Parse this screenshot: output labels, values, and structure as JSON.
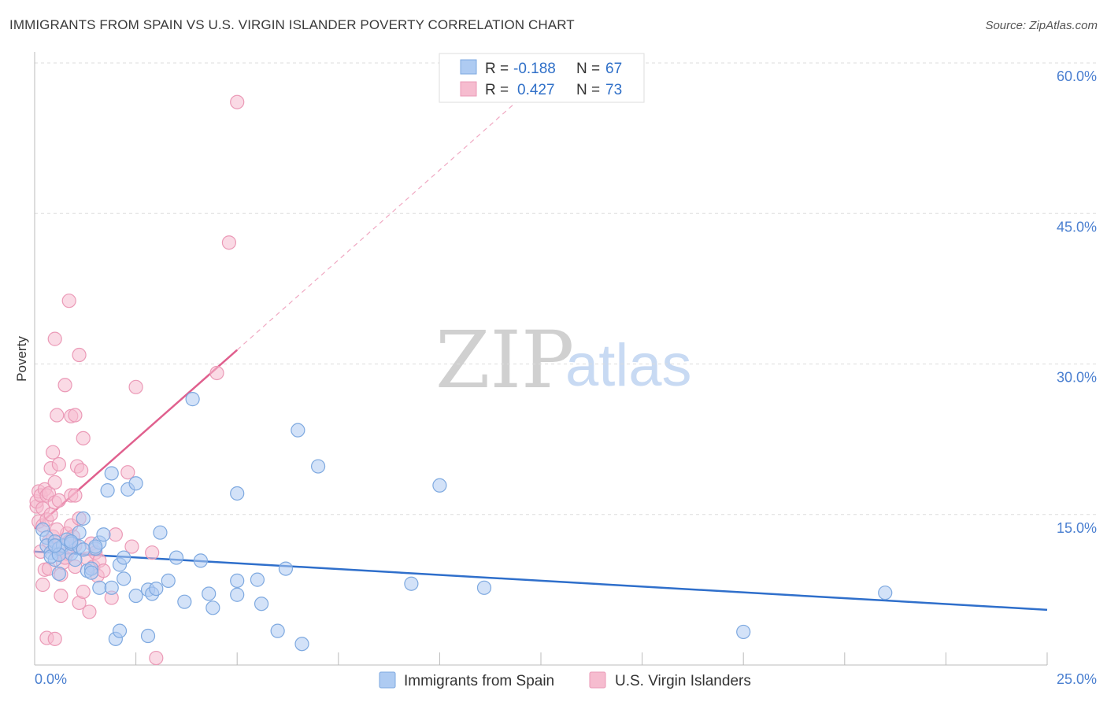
{
  "title": "IMMIGRANTS FROM SPAIN VS U.S. VIRGIN ISLANDER POVERTY CORRELATION CHART",
  "source": "Source: ZipAtlas.com",
  "colors": {
    "blue": "#4a7fd0",
    "blue_fill": "#aecbf2",
    "blue_line": "#2f6fcb",
    "pink": "#e86f98",
    "pink_fill": "#f6bccf",
    "pink_line": "#e0608e",
    "grid": "#dddddd"
  },
  "legend": {
    "series": [
      {
        "r_label": "R =",
        "r_value": "-0.188",
        "n_label": "N =",
        "n_value": "67"
      },
      {
        "r_label": "R =",
        "r_value": "0.427",
        "n_label": "N =",
        "n_value": "73"
      }
    ]
  },
  "watermark": {
    "zip": "ZIP",
    "atlas": "atlas"
  },
  "chart_data": {
    "type": "scatter",
    "xlabel": "",
    "ylabel": "Poverty",
    "xlim": [
      0,
      25
    ],
    "ylim": [
      0,
      60
    ],
    "x_tick_labels": [
      "0.0%",
      "25.0%"
    ],
    "y_ticks": [
      15,
      30,
      45,
      60
    ],
    "y_tick_labels": [
      "15.0%",
      "30.0%",
      "45.0%",
      "60.0%"
    ],
    "grid": true,
    "series": [
      {
        "name": "Immigrants from Spain",
        "color": "blue",
        "trend": {
          "x": [
            0,
            25
          ],
          "y": [
            11.3,
            5.5
          ]
        },
        "points": [
          [
            0.2,
            13.5
          ],
          [
            0.3,
            12.7
          ],
          [
            0.3,
            11.9
          ],
          [
            0.4,
            11.2
          ],
          [
            0.5,
            10.5
          ],
          [
            0.5,
            12.3
          ],
          [
            0.6,
            11.6
          ],
          [
            0.6,
            9.1
          ],
          [
            0.7,
            11.9
          ],
          [
            0.8,
            12.5
          ],
          [
            0.9,
            11.1
          ],
          [
            0.9,
            12.1
          ],
          [
            1.0,
            10.5
          ],
          [
            1.1,
            11.8
          ],
          [
            1.1,
            13.2
          ],
          [
            1.2,
            14.6
          ],
          [
            1.3,
            9.4
          ],
          [
            1.4,
            9.6
          ],
          [
            1.5,
            11.6
          ],
          [
            1.6,
            7.7
          ],
          [
            1.6,
            12.2
          ],
          [
            1.7,
            13.0
          ],
          [
            1.8,
            17.4
          ],
          [
            1.9,
            7.7
          ],
          [
            2.0,
            2.6
          ],
          [
            2.1,
            3.4
          ],
          [
            2.1,
            10.0
          ],
          [
            2.2,
            8.6
          ],
          [
            2.2,
            10.7
          ],
          [
            2.3,
            17.5
          ],
          [
            2.5,
            6.9
          ],
          [
            2.5,
            18.1
          ],
          [
            2.8,
            7.5
          ],
          [
            2.8,
            2.9
          ],
          [
            2.9,
            7.1
          ],
          [
            3.0,
            7.6
          ],
          [
            3.1,
            13.2
          ],
          [
            3.3,
            8.4
          ],
          [
            3.5,
            10.7
          ],
          [
            3.7,
            6.3
          ],
          [
            3.9,
            26.5
          ],
          [
            4.1,
            10.4
          ],
          [
            4.3,
            7.1
          ],
          [
            4.4,
            5.7
          ],
          [
            5.0,
            17.1
          ],
          [
            5.0,
            7.0
          ],
          [
            5.0,
            8.4
          ],
          [
            5.5,
            8.5
          ],
          [
            5.6,
            6.1
          ],
          [
            6.0,
            3.4
          ],
          [
            6.2,
            9.6
          ],
          [
            6.5,
            23.4
          ],
          [
            6.6,
            2.1
          ],
          [
            7.0,
            19.8
          ],
          [
            9.3,
            8.1
          ],
          [
            10.0,
            17.9
          ],
          [
            11.1,
            7.7
          ],
          [
            17.5,
            3.3
          ],
          [
            21.0,
            7.2
          ],
          [
            1.4,
            9.2
          ],
          [
            0.4,
            10.8
          ],
          [
            0.6,
            11.0
          ],
          [
            0.9,
            12.3
          ],
          [
            1.5,
            11.8
          ],
          [
            1.2,
            11.5
          ],
          [
            0.5,
            11.9
          ],
          [
            1.9,
            19.1
          ]
        ]
      },
      {
        "name": "U.S. Virgin Islanders",
        "color": "pink",
        "trend": {
          "x": [
            0,
            5.0
          ],
          "y": [
            13.6,
            31.4
          ]
        },
        "trend_extension": {
          "x": [
            5.0,
            12.0
          ],
          "y": [
            31.4,
            56.5
          ]
        },
        "points": [
          [
            0.05,
            15.8
          ],
          [
            0.05,
            16.3
          ],
          [
            0.1,
            17.3
          ],
          [
            0.1,
            14.3
          ],
          [
            0.15,
            16.9
          ],
          [
            0.2,
            15.6
          ],
          [
            0.2,
            13.9
          ],
          [
            0.25,
            17.5
          ],
          [
            0.3,
            14.5
          ],
          [
            0.3,
            16.9
          ],
          [
            0.35,
            12.3
          ],
          [
            0.35,
            17.1
          ],
          [
            0.4,
            15.0
          ],
          [
            0.4,
            19.6
          ],
          [
            0.45,
            21.2
          ],
          [
            0.5,
            11.6
          ],
          [
            0.5,
            12.0
          ],
          [
            0.5,
            16.2
          ],
          [
            0.5,
            18.2
          ],
          [
            0.5,
            32.5
          ],
          [
            0.55,
            24.9
          ],
          [
            0.6,
            20.0
          ],
          [
            0.6,
            16.4
          ],
          [
            0.65,
            9.0
          ],
          [
            0.7,
            10.2
          ],
          [
            0.75,
            27.9
          ],
          [
            0.8,
            11.1
          ],
          [
            0.8,
            13.1
          ],
          [
            0.85,
            36.3
          ],
          [
            0.9,
            24.8
          ],
          [
            0.9,
            16.9
          ],
          [
            0.9,
            13.9
          ],
          [
            0.95,
            12.8
          ],
          [
            1.0,
            11.9
          ],
          [
            1.0,
            24.9
          ],
          [
            1.0,
            16.9
          ],
          [
            1.0,
            9.8
          ],
          [
            1.05,
            19.8
          ],
          [
            1.1,
            30.9
          ],
          [
            1.1,
            6.2
          ],
          [
            1.1,
            14.6
          ],
          [
            1.15,
            19.4
          ],
          [
            1.2,
            22.6
          ],
          [
            1.3,
            10.6
          ],
          [
            1.35,
            5.3
          ],
          [
            1.4,
            12.1
          ],
          [
            1.45,
            9.8
          ],
          [
            1.5,
            11.2
          ],
          [
            1.55,
            8.9
          ],
          [
            1.6,
            10.4
          ],
          [
            1.7,
            9.4
          ],
          [
            1.9,
            6.7
          ],
          [
            2.0,
            13.0
          ],
          [
            2.3,
            19.2
          ],
          [
            2.4,
            11.8
          ],
          [
            2.5,
            27.7
          ],
          [
            2.9,
            11.2
          ],
          [
            3.0,
            0.7
          ],
          [
            4.5,
            29.1
          ],
          [
            4.8,
            42.1
          ],
          [
            5.0,
            56.1
          ],
          [
            0.3,
            2.7
          ],
          [
            0.65,
            6.9
          ],
          [
            0.45,
            12.8
          ],
          [
            0.25,
            9.5
          ],
          [
            0.85,
            12.3
          ],
          [
            0.55,
            13.5
          ],
          [
            0.15,
            11.3
          ],
          [
            0.75,
            10.7
          ],
          [
            0.2,
            8.0
          ],
          [
            0.5,
            2.6
          ],
          [
            1.2,
            7.3
          ],
          [
            0.35,
            9.6
          ]
        ]
      }
    ]
  }
}
